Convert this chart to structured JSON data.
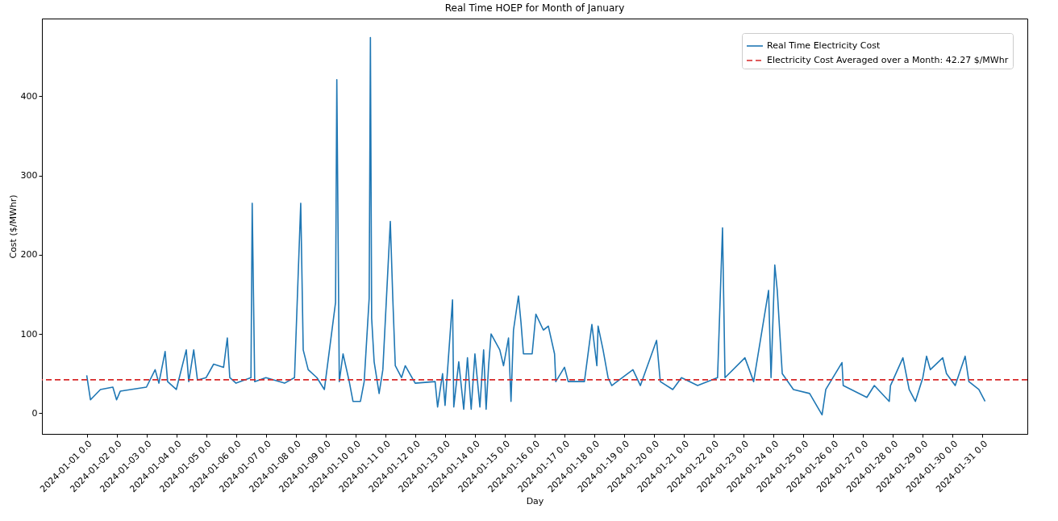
{
  "chart_data": {
    "type": "line",
    "title": "Real Time HOEP for Month of January",
    "xlabel": "Day",
    "ylabel": "Cost ($/MWhr)",
    "x": [
      "2024-01-01T00:00",
      "2024-01-01T03:00",
      "2024-01-01T11:00",
      "2024-01-01T21:00",
      "2024-01-02T00:00",
      "2024-01-02T03:00",
      "2024-01-03T00:00",
      "2024-01-03T07:00",
      "2024-01-03T10:00",
      "2024-01-03T15:00",
      "2024-01-03T17:00",
      "2024-01-04T00:00",
      "2024-01-04T08:00",
      "2024-01-04T10:00",
      "2024-01-04T14:00",
      "2024-01-04T17:00",
      "2024-01-05T00:00",
      "2024-01-05T06:00",
      "2024-01-05T14:00",
      "2024-01-05T17:00",
      "2024-01-05T19:00",
      "2024-01-06T00:00",
      "2024-01-06T12:00",
      "2024-01-06T13:00",
      "2024-01-06T15:00",
      "2024-01-07T00:00",
      "2024-01-07T15:00",
      "2024-01-07T23:00",
      "2024-01-08T04:00",
      "2024-01-08T06:00",
      "2024-01-08T10:00",
      "2024-01-08T17:00",
      "2024-01-08T23:00",
      "2024-01-09T08:00",
      "2024-01-09T09:00",
      "2024-01-09T11:00",
      "2024-01-09T14:00",
      "2024-01-09T19:00",
      "2024-01-09T22:00",
      "2024-01-10T04:00",
      "2024-01-10T07:00",
      "2024-01-10T11:00",
      "2024-01-10T12:00",
      "2024-01-10T13:00",
      "2024-01-10T15:00",
      "2024-01-10T19:00",
      "2024-01-10T22:00",
      "2024-01-11T04:00",
      "2024-01-11T06:00",
      "2024-01-11T08:00",
      "2024-01-11T13:00",
      "2024-01-11T16:00",
      "2024-01-12T00:00",
      "2024-01-12T16:00",
      "2024-01-12T18:00",
      "2024-01-12T22:00",
      "2024-01-13T00:00",
      "2024-01-13T06:00",
      "2024-01-13T07:00",
      "2024-01-13T11:00",
      "2024-01-13T15:00",
      "2024-01-13T18:00",
      "2024-01-13T21:00",
      "2024-01-14T00:00",
      "2024-01-14T04:00",
      "2024-01-14T07:00",
      "2024-01-14T09:00",
      "2024-01-14T11:00",
      "2024-01-14T13:00",
      "2024-01-14T20:00",
      "2024-01-14T23:00",
      "2024-01-15T03:00",
      "2024-01-15T05:00",
      "2024-01-15T07:00",
      "2024-01-15T11:00",
      "2024-01-15T13:00",
      "2024-01-15T15:00",
      "2024-01-15T22:00",
      "2024-01-16T01:00",
      "2024-01-16T07:00",
      "2024-01-16T11:00",
      "2024-01-16T16:00",
      "2024-01-16T17:00",
      "2024-01-17T00:00",
      "2024-01-17T03:00",
      "2024-01-17T16:00",
      "2024-01-17T22:00",
      "2024-01-18T02:00",
      "2024-01-18T03:00",
      "2024-01-18T07:00",
      "2024-01-18T11:00",
      "2024-01-18T14:00",
      "2024-01-19T07:00",
      "2024-01-19T13:00",
      "2024-01-20T02:00",
      "2024-01-20T05:00",
      "2024-01-20T15:00",
      "2024-01-20T22:00",
      "2024-01-21T11:00",
      "2024-01-22T03:00",
      "2024-01-22T07:00",
      "2024-01-22T09:00",
      "2024-01-23T01:00",
      "2024-01-23T08:00",
      "2024-01-23T20:00",
      "2024-01-23T22:00",
      "2024-01-24T01:00",
      "2024-01-24T03:00",
      "2024-01-24T07:00",
      "2024-01-24T16:00",
      "2024-01-25T05:00",
      "2024-01-25T15:00",
      "2024-01-25T18:00",
      "2024-01-26T07:00",
      "2024-01-26T08:00",
      "2024-01-27T03:00",
      "2024-01-27T09:00",
      "2024-01-27T21:00",
      "2024-01-27T22:00",
      "2024-01-28T08:00",
      "2024-01-28T13:00",
      "2024-01-28T18:00",
      "2024-01-29T00:00",
      "2024-01-29T03:00",
      "2024-01-29T06:00",
      "2024-01-29T16:00",
      "2024-01-29T19:00",
      "2024-01-30T02:00",
      "2024-01-30T10:00",
      "2024-01-30T13:00",
      "2024-01-30T21:00",
      "2024-01-31T02:00"
    ],
    "series": [
      {
        "name": "Real Time Electricity Cost",
        "color": "#1f77b4",
        "values": [
          48,
          17,
          30,
          33,
          17,
          28,
          33,
          55,
          38,
          78,
          40,
          30,
          80,
          40,
          80,
          42,
          45,
          62,
          58,
          95,
          45,
          38,
          45,
          265,
          40,
          45,
          38,
          45,
          265,
          80,
          55,
          45,
          30,
          140,
          421,
          40,
          75,
          40,
          15,
          15,
          40,
          145,
          474,
          120,
          65,
          25,
          55,
          242,
          145,
          60,
          45,
          60,
          38,
          40,
          8,
          50,
          10,
          143,
          8,
          65,
          5,
          70,
          5,
          75,
          8,
          80,
          5,
          60,
          100,
          80,
          60,
          95,
          15,
          105,
          148,
          115,
          75,
          75,
          125,
          105,
          110,
          75,
          40,
          58,
          40,
          40,
          112,
          60,
          110,
          80,
          45,
          35,
          55,
          35,
          92,
          40,
          30,
          45,
          35,
          45,
          234,
          45,
          70,
          40,
          155,
          45,
          187,
          155,
          50,
          30,
          25,
          -2,
          30,
          64,
          35,
          20,
          35,
          15,
          35,
          70,
          30,
          15,
          45,
          72,
          55,
          70,
          50,
          35,
          72,
          40,
          30,
          15
        ]
      }
    ],
    "ref_lines": [
      {
        "axis": "y",
        "value": 42.27,
        "label": "Electricity Cost Averaged over a Month: 42.27 $/MWhr",
        "color": "#d62728",
        "line_style": "dashed"
      }
    ],
    "xlim": [
      "2023-12-30T12:00",
      "2024-02-01T12:00"
    ],
    "xticks": [
      {
        "value": "2024-01-01",
        "label": "2024-01-01 0.0"
      },
      {
        "value": "2024-01-02",
        "label": "2024-01-02 0.0"
      },
      {
        "value": "2024-01-03",
        "label": "2024-01-03 0.0"
      },
      {
        "value": "2024-01-04",
        "label": "2024-01-04 0.0"
      },
      {
        "value": "2024-01-05",
        "label": "2024-01-05 0.0"
      },
      {
        "value": "2024-01-06",
        "label": "2024-01-06 0.0"
      },
      {
        "value": "2024-01-07",
        "label": "2024-01-07 0.0"
      },
      {
        "value": "2024-01-08",
        "label": "2024-01-08 0.0"
      },
      {
        "value": "2024-01-09",
        "label": "2024-01-09 0.0"
      },
      {
        "value": "2024-01-10",
        "label": "2024-01-10 0.0"
      },
      {
        "value": "2024-01-11",
        "label": "2024-01-11 0.0"
      },
      {
        "value": "2024-01-12",
        "label": "2024-01-12 0.0"
      },
      {
        "value": "2024-01-13",
        "label": "2024-01-13 0.0"
      },
      {
        "value": "2024-01-14",
        "label": "2024-01-14 0.0"
      },
      {
        "value": "2024-01-15",
        "label": "2024-01-15 0.0"
      },
      {
        "value": "2024-01-16",
        "label": "2024-01-16 0.0"
      },
      {
        "value": "2024-01-17",
        "label": "2024-01-17 0.0"
      },
      {
        "value": "2024-01-18",
        "label": "2024-01-18 0.0"
      },
      {
        "value": "2024-01-19",
        "label": "2024-01-19 0.0"
      },
      {
        "value": "2024-01-20",
        "label": "2024-01-20 0.0"
      },
      {
        "value": "2024-01-21",
        "label": "2024-01-21 0.0"
      },
      {
        "value": "2024-01-22",
        "label": "2024-01-22 0.0"
      },
      {
        "value": "2024-01-23",
        "label": "2024-01-23 0.0"
      },
      {
        "value": "2024-01-24",
        "label": "2024-01-24 0.0"
      },
      {
        "value": "2024-01-25",
        "label": "2024-01-25 0.0"
      },
      {
        "value": "2024-01-26",
        "label": "2024-01-26 0.0"
      },
      {
        "value": "2024-01-27",
        "label": "2024-01-27 0.0"
      },
      {
        "value": "2024-01-28",
        "label": "2024-01-28 0.0"
      },
      {
        "value": "2024-01-29",
        "label": "2024-01-29 0.0"
      },
      {
        "value": "2024-01-30",
        "label": "2024-01-30 0.0"
      },
      {
        "value": "2024-01-31",
        "label": "2024-01-31 0.0"
      }
    ],
    "ylim": [
      -26,
      498
    ],
    "yticks": [
      0,
      100,
      200,
      300,
      400
    ],
    "legend": "top right",
    "grid": false,
    "marker": "none",
    "line_style": "solid"
  }
}
